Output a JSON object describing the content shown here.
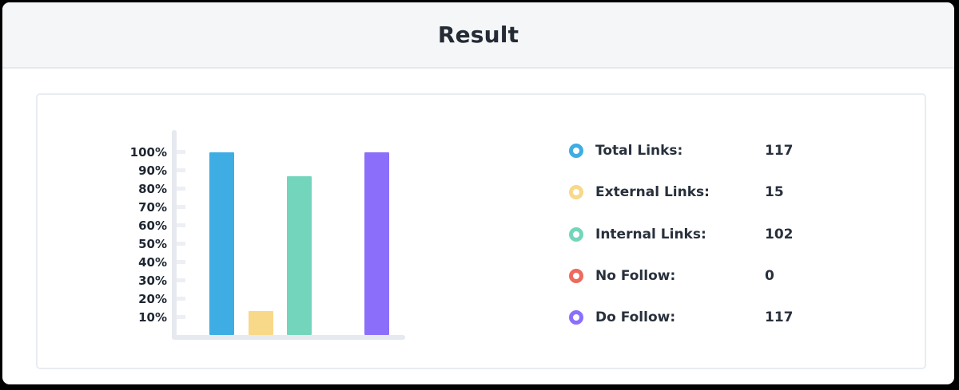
{
  "header": {
    "title": "Result"
  },
  "chart_data": {
    "type": "bar",
    "title": "",
    "xlabel": "",
    "ylabel": "",
    "categories": [
      "Total Links",
      "External Links",
      "Internal Links",
      "No Follow",
      "Do Follow"
    ],
    "values_percent": [
      100,
      13,
      87,
      0,
      100
    ],
    "counts": [
      117,
      15,
      102,
      0,
      117
    ],
    "bar_colors": [
      "#3EADE3",
      "#F8D889",
      "#73D6BC",
      "#ED6A5E",
      "#8B6FFB"
    ],
    "ytick_labels": [
      "100%",
      "90%",
      "80%",
      "70%",
      "60%",
      "50%",
      "40%",
      "30%",
      "20%",
      "10%"
    ],
    "ylim": [
      0,
      100
    ],
    "grid": false,
    "legend_position": "right"
  },
  "legend": {
    "items": [
      {
        "icon": "ring-icon",
        "color": "#3EADE3",
        "label": "Total Links:",
        "value": "117"
      },
      {
        "icon": "ring-icon",
        "color": "#F8D889",
        "label": "External Links:",
        "value": "15"
      },
      {
        "icon": "ring-icon",
        "color": "#73D6BC",
        "label": "Internal Links:",
        "value": "102"
      },
      {
        "icon": "ring-icon",
        "color": "#ED6A5E",
        "label": "No Follow:",
        "value": "0"
      },
      {
        "icon": "ring-icon",
        "color": "#8B6FFB",
        "label": "Do Follow:",
        "value": "117"
      }
    ]
  },
  "colors": {
    "frame": "#000000",
    "header_bg": "#F5F6F8",
    "header_border": "#E5E8EC",
    "card_border": "#E9ECF0",
    "axis": "#E6E9EF",
    "tick": "#EDEFF4",
    "text": "#28303C"
  }
}
